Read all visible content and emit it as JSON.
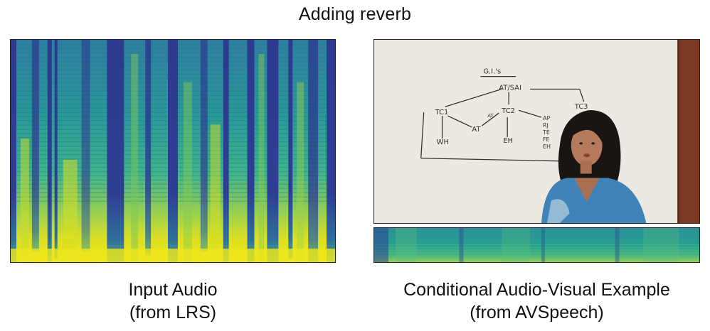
{
  "title": "Adding reverb",
  "left": {
    "caption_line1": "Input Audio",
    "caption_line2": "(from LRS)"
  },
  "right": {
    "caption_line1": "Conditional Audio-Visual Example",
    "caption_line2": "(from AVSpeech)",
    "whiteboard": {
      "heading": "G.I.'s",
      "top_node": "AT/SAI",
      "nodes": [
        "TC1",
        "TC2",
        "TC3",
        "AT",
        "AT",
        "WH",
        "EH",
        "AP",
        "RJ",
        "TE",
        "FE",
        "EH"
      ]
    }
  },
  "colors": {
    "spec_dark": "#2b2d8a",
    "spec_mid": "#1f9e89",
    "spec_bright": "#e6e41a",
    "whiteboard": "#ece9e2",
    "shirt": "#3f83b8",
    "door": "#7a3b22"
  }
}
